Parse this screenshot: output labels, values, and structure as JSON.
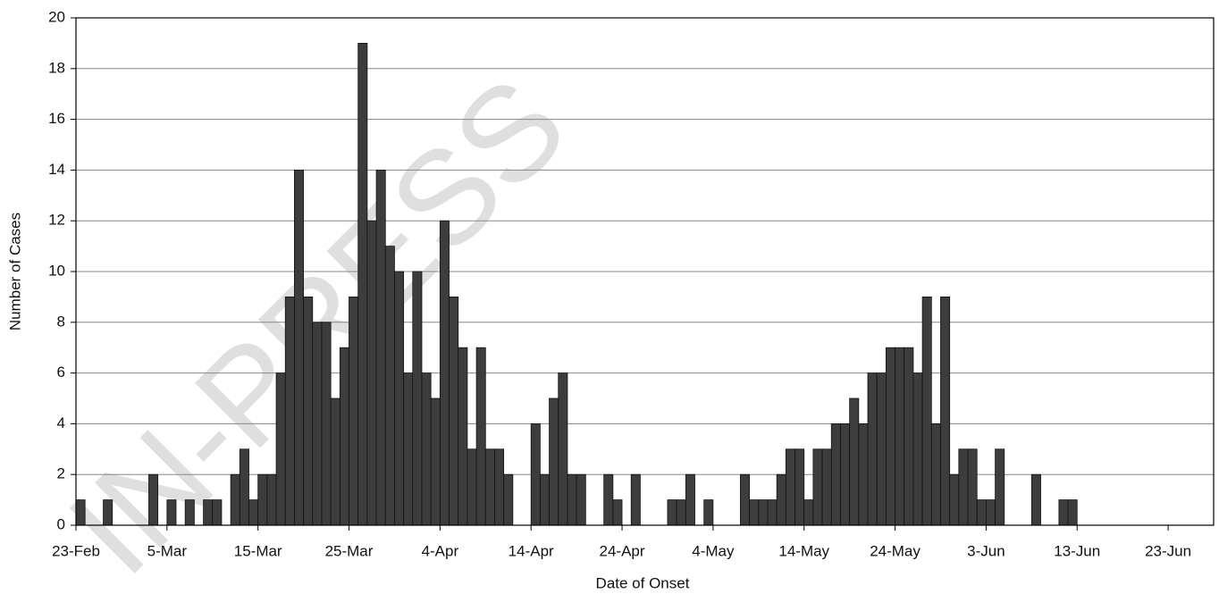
{
  "chart_data": {
    "type": "bar",
    "watermark": "IN-PRESS",
    "x_label": "Date of Onset",
    "y_label": "Number of Cases",
    "categories": [
      "23-Feb",
      null,
      null,
      null,
      null,
      null,
      null,
      null,
      null,
      null,
      "5-Mar",
      null,
      null,
      null,
      null,
      null,
      null,
      null,
      null,
      null,
      "15-Mar",
      null,
      null,
      null,
      null,
      null,
      null,
      null,
      null,
      null,
      "25-Mar",
      null,
      null,
      null,
      null,
      null,
      null,
      null,
      null,
      null,
      "4-Apr",
      null,
      null,
      null,
      null,
      null,
      null,
      null,
      null,
      null,
      "14-Apr",
      null,
      null,
      null,
      null,
      null,
      null,
      null,
      null,
      null,
      "24-Apr",
      null,
      null,
      null,
      null,
      null,
      null,
      null,
      null,
      null,
      "4-May",
      null,
      null,
      null,
      null,
      null,
      null,
      null,
      null,
      null,
      "14-May",
      null,
      null,
      null,
      null,
      null,
      null,
      null,
      null,
      null,
      "24-May",
      null,
      null,
      null,
      null,
      null,
      null,
      null,
      null,
      null,
      "3-Jun",
      null,
      null,
      null,
      null,
      null,
      null,
      null,
      null,
      null,
      "13-Jun",
      null,
      null,
      null,
      null,
      null,
      null,
      null,
      null,
      null,
      "23-Jun",
      null,
      null,
      null,
      null
    ],
    "values": [
      1,
      0,
      0,
      1,
      0,
      0,
      0,
      0,
      2,
      0,
      1,
      0,
      1,
      0,
      1,
      1,
      0,
      2,
      3,
      1,
      2,
      2,
      6,
      9,
      14,
      9,
      8,
      8,
      5,
      7,
      9,
      19,
      12,
      14,
      11,
      10,
      6,
      10,
      6,
      5,
      12,
      9,
      7,
      3,
      7,
      3,
      3,
      2,
      0,
      0,
      4,
      2,
      5,
      6,
      2,
      2,
      0,
      0,
      2,
      1,
      0,
      2,
      0,
      0,
      0,
      1,
      1,
      2,
      0,
      1,
      0,
      0,
      0,
      2,
      1,
      1,
      1,
      2,
      3,
      3,
      1,
      3,
      3,
      4,
      4,
      5,
      4,
      6,
      6,
      7,
      7,
      7,
      6,
      9,
      4,
      9,
      2,
      3,
      3,
      1,
      1,
      3,
      0,
      0,
      0,
      2,
      0,
      0,
      1,
      1,
      0,
      0,
      0,
      0,
      0,
      0,
      0,
      0,
      0,
      0,
      0,
      0,
      0,
      0,
      0
    ],
    "color": "#3d3d3d",
    "ylim": [
      0,
      20
    ],
    "yticks": [
      0,
      2,
      4,
      6,
      8,
      10,
      12,
      14,
      16,
      18,
      20
    ],
    "grid": true
  }
}
